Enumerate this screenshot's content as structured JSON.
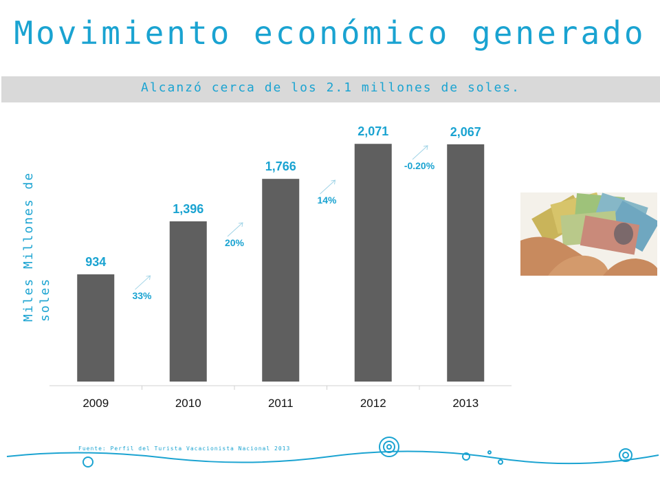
{
  "slide": {
    "title": "Movimiento económico generado",
    "subtitle": "Alcanzó cerca de los 2.1 millones de soles.",
    "source": "Fuente: Perfil del Turista Vacacionista Nacional 2013"
  },
  "colors": {
    "accent": "#1aa3d1",
    "bar": "#5f5f5f",
    "band": "#d9d9d9"
  },
  "chart_data": {
    "type": "bar",
    "categories": [
      "2009",
      "2010",
      "2011",
      "2012",
      "2013"
    ],
    "values": [
      934,
      1396,
      1766,
      2071,
      2067
    ],
    "data_labels": [
      "934",
      "1,396",
      "1,766",
      "2,071",
      "2,067"
    ],
    "growth_labels": [
      "33%",
      "20%",
      "14%",
      "-0.20%"
    ],
    "ylabel": "Miles Millones de soles",
    "ylim": [
      0,
      2300
    ],
    "grid": false,
    "legend": "none"
  }
}
